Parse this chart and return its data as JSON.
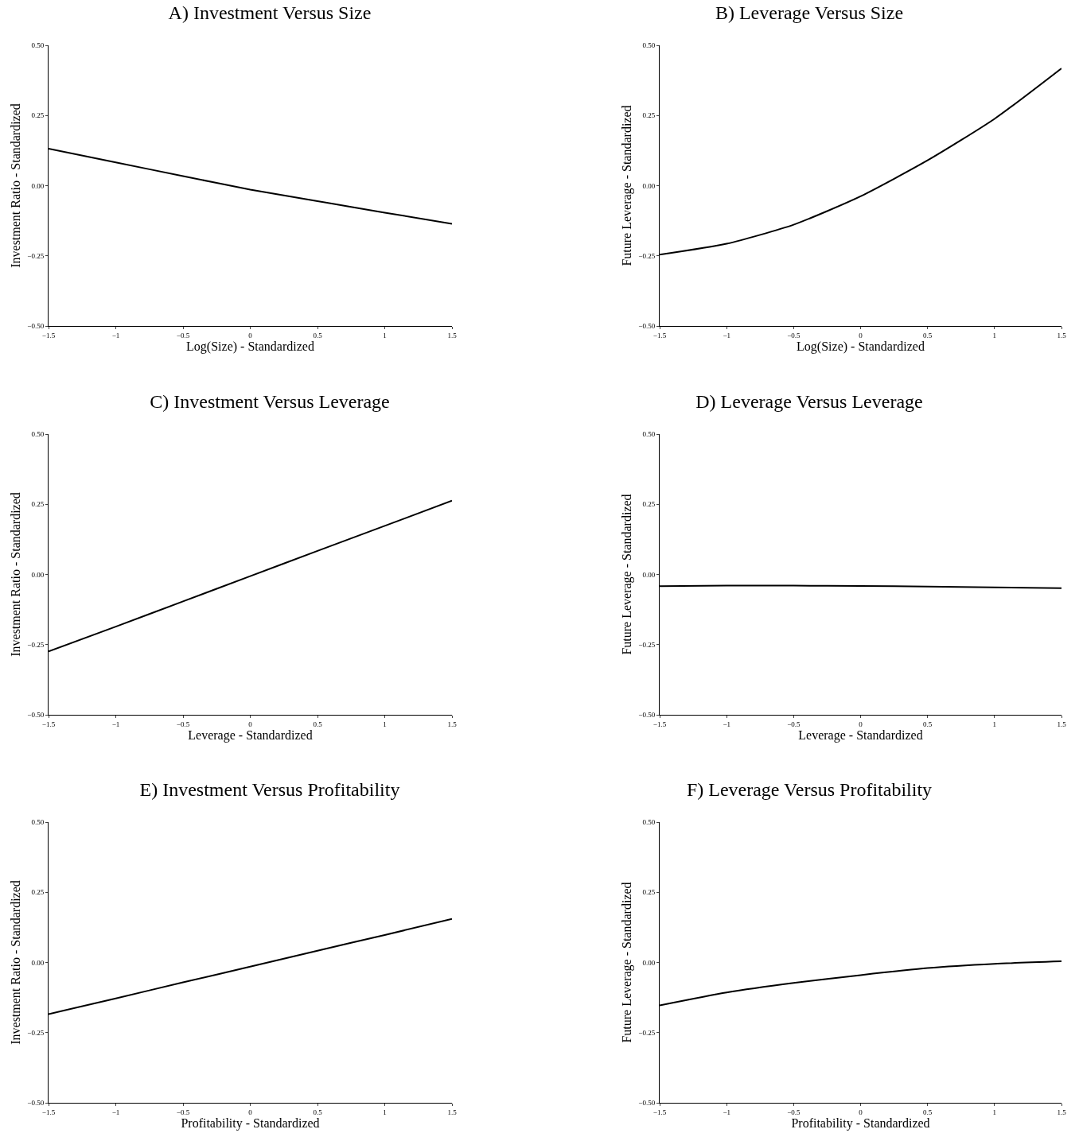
{
  "chart_data": [
    {
      "type": "line",
      "title": "A) Investment Versus Size",
      "xlabel": "Log(Size) - Standardized",
      "ylabel": "Investment Ratio - Standardized",
      "x": [
        -1.5,
        -1,
        -0.5,
        0,
        0.5,
        1,
        1.5
      ],
      "series": [
        {
          "color": "#000000",
          "values": [
            0.132,
            0.083,
            0.034,
            -0.014,
            -0.055,
            -0.096,
            -0.136
          ]
        }
      ],
      "xlim": [
        -1.5,
        1.5
      ],
      "xticks": [
        {
          "value": -1.5,
          "label": "−1.5"
        },
        {
          "value": -1,
          "label": "−1"
        },
        {
          "value": -0.5,
          "label": "−0.5"
        },
        0,
        0.5,
        1,
        1.5
      ],
      "ylim": [
        -0.5,
        0.5
      ],
      "yticks": [
        {
          "value": -0.5,
          "label": "−0.50"
        },
        {
          "value": -0.25,
          "label": "−0.25"
        },
        {
          "value": 0,
          "label": "0.00"
        },
        {
          "value": 0.25,
          "label": "0.25"
        },
        {
          "value": 0.5,
          "label": "0.50"
        }
      ],
      "grid": false
    },
    {
      "type": "line",
      "title": "B) Leverage Versus Size",
      "xlabel": "Log(Size) - Standardized",
      "ylabel": "Future Leverage - Standardized",
      "x": [
        -1.5,
        -1,
        -0.5,
        0,
        0.5,
        1,
        1.5
      ],
      "series": [
        {
          "color": "#000000",
          "values": [
            -0.246,
            -0.207,
            -0.139,
            -0.038,
            0.09,
            0.238,
            0.418
          ]
        }
      ],
      "xlim": [
        -1.5,
        1.5
      ],
      "xticks": [
        {
          "value": -1.5,
          "label": "−1.5"
        },
        {
          "value": -1,
          "label": "−1"
        },
        {
          "value": -0.5,
          "label": "−0.5"
        },
        0,
        0.5,
        1,
        1.5
      ],
      "ylim": [
        -0.5,
        0.5
      ],
      "yticks": [
        {
          "value": -0.5,
          "label": "−0.50"
        },
        {
          "value": -0.25,
          "label": "−0.25"
        },
        {
          "value": 0,
          "label": "0.00"
        },
        {
          "value": 0.25,
          "label": "0.25"
        },
        {
          "value": 0.5,
          "label": "0.50"
        }
      ],
      "grid": false
    },
    {
      "type": "line",
      "title": "C) Investment Versus Leverage",
      "xlabel": "Leverage - Standardized",
      "ylabel": "Investment Ratio - Standardized",
      "x": [
        -1.5,
        -1,
        -0.5,
        0,
        0.5,
        1,
        1.5
      ],
      "series": [
        {
          "color": "#000000",
          "values": [
            -0.274,
            -0.186,
            -0.096,
            -0.006,
            0.084,
            0.173,
            0.263
          ]
        }
      ],
      "xlim": [
        -1.5,
        1.5
      ],
      "xticks": [
        {
          "value": -1.5,
          "label": "−1.5"
        },
        {
          "value": -1,
          "label": "−1"
        },
        {
          "value": -0.5,
          "label": "−0.5"
        },
        0,
        0.5,
        1,
        1.5
      ],
      "ylim": [
        -0.5,
        0.5
      ],
      "yticks": [
        {
          "value": -0.5,
          "label": "−0.50"
        },
        {
          "value": -0.25,
          "label": "−0.25"
        },
        {
          "value": 0,
          "label": "0.00"
        },
        {
          "value": 0.25,
          "label": "0.25"
        },
        {
          "value": 0.5,
          "label": "0.50"
        }
      ],
      "grid": false
    },
    {
      "type": "line",
      "title": "D) Leverage Versus Leverage",
      "xlabel": "Leverage - Standardized",
      "ylabel": "Future Leverage - Standardized",
      "x": [
        -1.5,
        -1,
        -0.5,
        0,
        0.5,
        1,
        1.5
      ],
      "series": [
        {
          "color": "#000000",
          "values": [
            -0.042,
            -0.04,
            -0.04,
            -0.041,
            -0.043,
            -0.046,
            -0.049
          ]
        }
      ],
      "xlim": [
        -1.5,
        1.5
      ],
      "xticks": [
        {
          "value": -1.5,
          "label": "−1.5"
        },
        {
          "value": -1,
          "label": "−1"
        },
        {
          "value": -0.5,
          "label": "−0.5"
        },
        0,
        0.5,
        1,
        1.5
      ],
      "ylim": [
        -0.5,
        0.5
      ],
      "yticks": [
        {
          "value": -0.5,
          "label": "−0.50"
        },
        {
          "value": -0.25,
          "label": "−0.25"
        },
        {
          "value": 0,
          "label": "0.00"
        },
        {
          "value": 0.25,
          "label": "0.25"
        },
        {
          "value": 0.5,
          "label": "0.50"
        }
      ],
      "grid": false
    },
    {
      "type": "line",
      "title": "E) Investment Versus Profitability",
      "xlabel": "Profitability - Standardized",
      "ylabel": "Investment Ratio - Standardized",
      "x": [
        -1.5,
        -1,
        -0.5,
        0,
        0.5,
        1,
        1.5
      ],
      "series": [
        {
          "color": "#000000",
          "values": [
            -0.184,
            -0.128,
            -0.071,
            -0.015,
            0.042,
            0.098,
            0.155
          ]
        }
      ],
      "xlim": [
        -1.5,
        1.5
      ],
      "xticks": [
        {
          "value": -1.5,
          "label": "−1.5"
        },
        {
          "value": -1,
          "label": "−1"
        },
        {
          "value": -0.5,
          "label": "−0.5"
        },
        0,
        0.5,
        1,
        1.5
      ],
      "ylim": [
        -0.5,
        0.5
      ],
      "yticks": [
        {
          "value": -0.5,
          "label": "−0.50"
        },
        {
          "value": -0.25,
          "label": "−0.25"
        },
        {
          "value": 0,
          "label": "0.00"
        },
        {
          "value": 0.25,
          "label": "0.25"
        },
        {
          "value": 0.5,
          "label": "0.50"
        }
      ],
      "grid": false
    },
    {
      "type": "line",
      "title": "F) Leverage Versus Profitability",
      "xlabel": "Profitability - Standardized",
      "ylabel": "Future Leverage - Standardized",
      "x": [
        -1.5,
        -1,
        -0.5,
        0,
        0.5,
        1,
        1.5
      ],
      "series": [
        {
          "color": "#000000",
          "values": [
            -0.153,
            -0.107,
            -0.073,
            -0.045,
            -0.02,
            -0.005,
            0.004
          ]
        }
      ],
      "xlim": [
        -1.5,
        1.5
      ],
      "xticks": [
        {
          "value": -1.5,
          "label": "−1.5"
        },
        {
          "value": -1,
          "label": "−1"
        },
        {
          "value": -0.5,
          "label": "−0.5"
        },
        0,
        0.5,
        1,
        1.5
      ],
      "ylim": [
        -0.5,
        0.5
      ],
      "yticks": [
        {
          "value": -0.5,
          "label": "−0.50"
        },
        {
          "value": -0.25,
          "label": "−0.25"
        },
        {
          "value": 0,
          "label": "0.00"
        },
        {
          "value": 0.25,
          "label": "0.25"
        },
        {
          "value": 0.5,
          "label": "0.50"
        }
      ],
      "grid": false
    }
  ]
}
